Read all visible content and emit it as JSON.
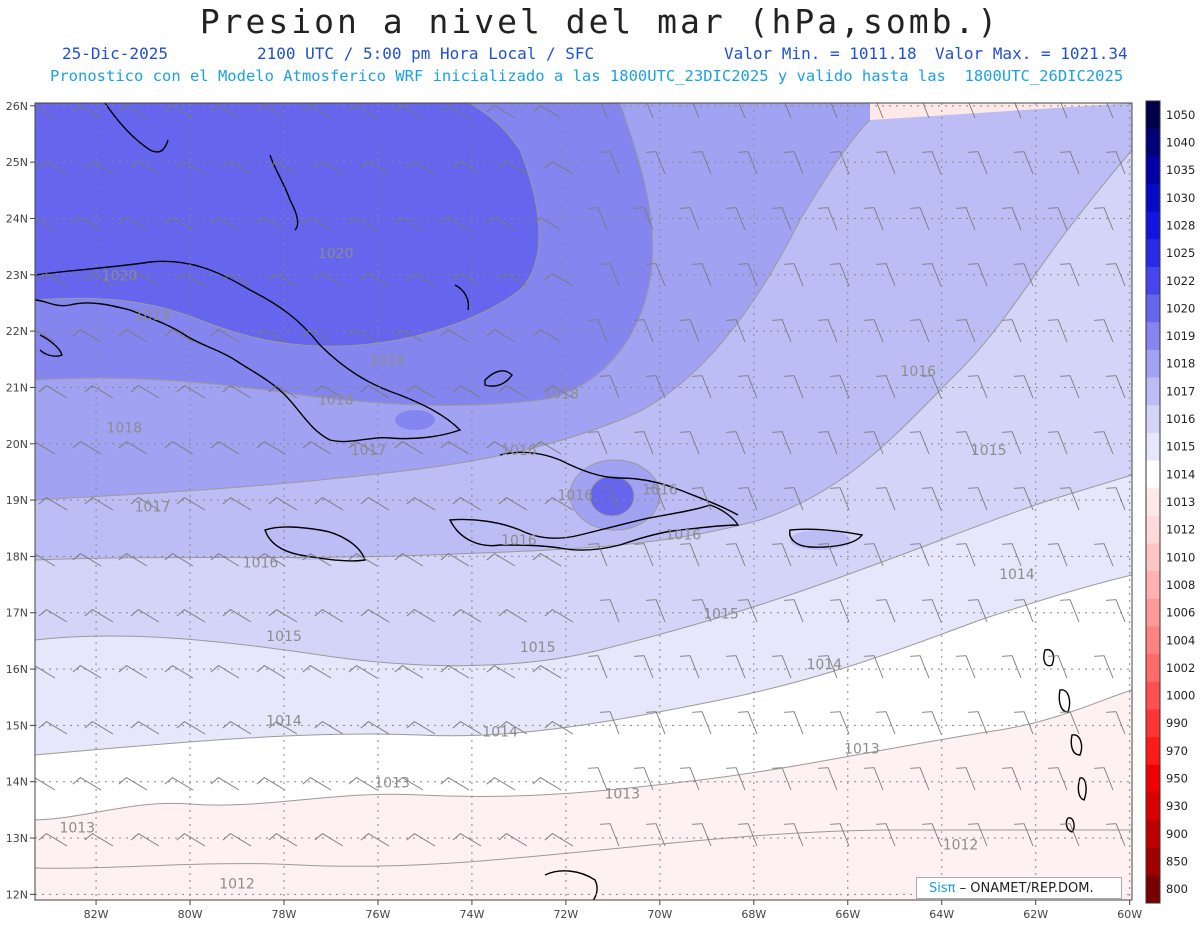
{
  "header": {
    "title": "Presion a nivel del mar (hPa,somb.)",
    "date": "25-Dic-2025",
    "time": "2100 UTC / 5:00 pm Hora Local / SFC",
    "min": "Valor Min. = 1011.18",
    "max": "Valor Max. = 1021.34",
    "subtitle": "Pronostico con el Modelo Atmosferico WRF inicializado a las 1800UTC_23DIC2025 y valido hasta las  1800UTC_26DIC2025"
  },
  "credit": {
    "brand": "Sisπ",
    "org": " – ONAMET/REP.DOM."
  },
  "map": {
    "lat_labels": [
      "26N",
      "25N",
      "24N",
      "23N",
      "22N",
      "21N",
      "20N",
      "19N",
      "18N",
      "17N",
      "16N",
      "15N",
      "14N",
      "13N",
      "12N"
    ],
    "lon_labels": [
      "82W",
      "80W",
      "78W",
      "76W",
      "74W",
      "72W",
      "70W",
      "68W",
      "66W",
      "64W",
      "62W",
      "60W"
    ],
    "contour_labels": [
      {
        "text": "1020",
        "lon": -81.5,
        "lat": 22.9
      },
      {
        "text": "1020",
        "lon": -76.9,
        "lat": 23.3
      },
      {
        "text": "1019",
        "lon": -80.8,
        "lat": 22.2
      },
      {
        "text": "1018",
        "lon": -81.4,
        "lat": 20.2
      },
      {
        "text": "1018",
        "lon": -76.9,
        "lat": 20.7
      },
      {
        "text": "1018",
        "lon": -72.1,
        "lat": 20.8
      },
      {
        "text": "1018",
        "lon": -75.8,
        "lat": 21.4
      },
      {
        "text": "1017",
        "lon": -80.8,
        "lat": 18.8
      },
      {
        "text": "1017",
        "lon": -76.2,
        "lat": 19.8
      },
      {
        "text": "1016",
        "lon": -78.5,
        "lat": 17.8
      },
      {
        "text": "1016",
        "lon": -73.0,
        "lat": 18.2
      },
      {
        "text": "1016",
        "lon": -69.5,
        "lat": 18.3
      },
      {
        "text": "1016",
        "lon": -73.0,
        "lat": 19.8
      },
      {
        "text": "1016",
        "lon": -71.8,
        "lat": 19.0
      },
      {
        "text": "1016",
        "lon": -70.0,
        "lat": 19.1
      },
      {
        "text": "1016",
        "lon": -64.5,
        "lat": 21.2
      },
      {
        "text": "1015",
        "lon": -78.0,
        "lat": 16.5
      },
      {
        "text": "1015",
        "lon": -72.6,
        "lat": 16.3
      },
      {
        "text": "1015",
        "lon": -68.7,
        "lat": 16.9
      },
      {
        "text": "1015",
        "lon": -63.0,
        "lat": 19.8
      },
      {
        "text": "1014",
        "lon": -78.0,
        "lat": 15.0
      },
      {
        "text": "1014",
        "lon": -73.4,
        "lat": 14.8
      },
      {
        "text": "1014",
        "lon": -66.5,
        "lat": 16.0
      },
      {
        "text": "1014",
        "lon": -62.4,
        "lat": 17.6
      },
      {
        "text": "1013",
        "lon": -82.4,
        "lat": 13.1
      },
      {
        "text": "1013",
        "lon": -75.7,
        "lat": 13.9
      },
      {
        "text": "1013",
        "lon": -70.8,
        "lat": 13.7
      },
      {
        "text": "1013",
        "lon": -65.7,
        "lat": 14.5
      },
      {
        "text": "1012",
        "lon": -79.0,
        "lat": 12.1
      },
      {
        "text": "1012",
        "lon": -63.6,
        "lat": 12.8
      }
    ]
  },
  "colorbar": {
    "levels": [
      "1050",
      "1040",
      "1035",
      "1030",
      "1028",
      "1025",
      "1022",
      "1020",
      "1019",
      "1018",
      "1017",
      "1016",
      "1015",
      "1014",
      "1013",
      "1012",
      "1010",
      "1008",
      "1006",
      "1004",
      "1002",
      "1000",
      "990",
      "970",
      "950",
      "930",
      "900",
      "850",
      "800"
    ],
    "colors": [
      "#00004a",
      "#000078",
      "#0000a6",
      "#0808c8",
      "#1414e0",
      "#2a2ae6",
      "#4646ec",
      "#6565ee",
      "#8585f0",
      "#a2a2f3",
      "#bdbdf6",
      "#d4d4f8",
      "#e7e7fb",
      "#ffffff",
      "#ffe8e8",
      "#ffdada",
      "#ffc6c6",
      "#ffb2b2",
      "#ff9a9a",
      "#ff8282",
      "#ff6a6a",
      "#ff5050",
      "#ff3434",
      "#ff1a1a",
      "#f00000",
      "#d80000",
      "#bc0000",
      "#a00000",
      "#7a0000"
    ]
  }
}
